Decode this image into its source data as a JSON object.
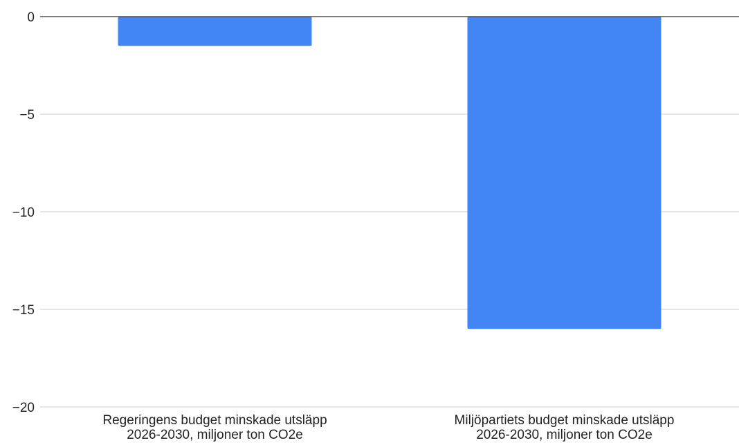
{
  "chart_data": {
    "type": "bar",
    "title": "",
    "xlabel": "",
    "ylabel": "",
    "categories": [
      [
        "Regeringens budget minskade utsläpp",
        "2026-2030, miljoner ton CO2e"
      ],
      [
        "Miljöpartiets budget minskade utsläpp",
        "2026-2030, miljoner ton CO2e"
      ]
    ],
    "values": [
      -1.5,
      -16
    ],
    "ylim": [
      -20,
      0
    ],
    "yticks": [
      0,
      -5,
      -10,
      -15,
      -20
    ],
    "ytick_labels": [
      "0",
      "−5",
      "−10",
      "−15",
      "−20"
    ],
    "grid": true,
    "legend": "none",
    "colors": {
      "bar": "#4285f4",
      "grid": "#cccccc",
      "zero_line": "#333333",
      "text": "#222222"
    }
  }
}
